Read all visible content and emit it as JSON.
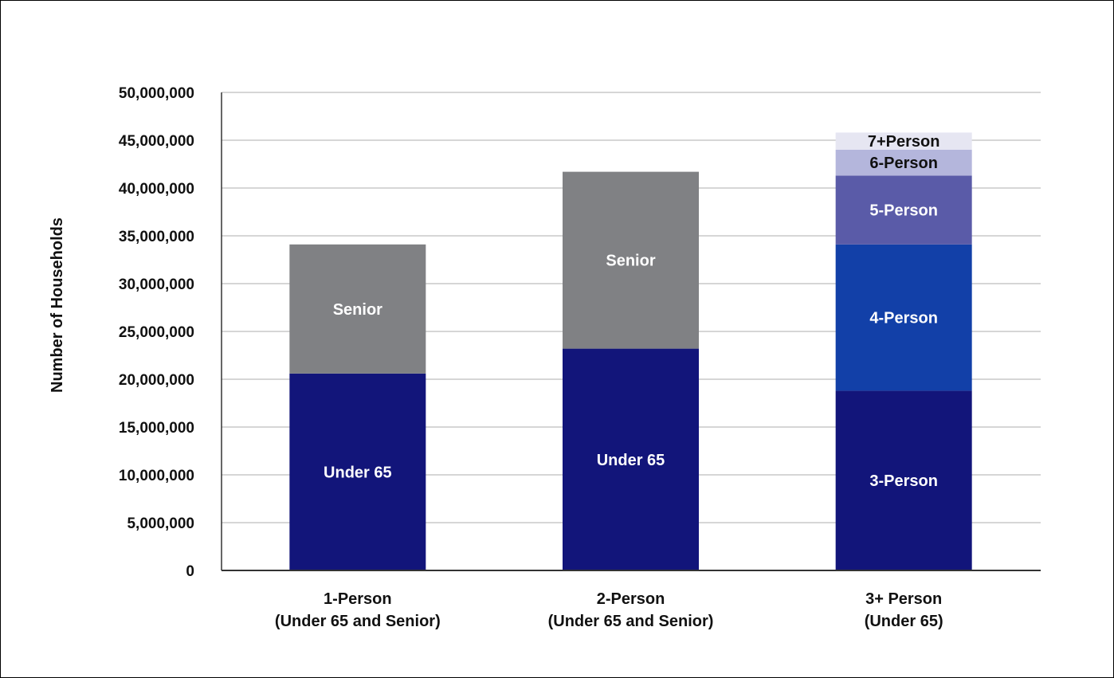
{
  "chart_data": {
    "type": "bar",
    "stacked": true,
    "title": "",
    "ylabel": "Number of Households",
    "xlabel": "",
    "ylim": [
      0,
      50000000
    ],
    "yticks": [
      0,
      5000000,
      10000000,
      15000000,
      20000000,
      25000000,
      30000000,
      35000000,
      40000000,
      45000000,
      50000000
    ],
    "ytick_labels": [
      "0",
      "5,000,000",
      "10,000,000",
      "15,000,000",
      "20,000,000",
      "25,000,000",
      "30,000,000",
      "35,000,000",
      "40,000,000",
      "45,000,000",
      "50,000,000"
    ],
    "grid": true,
    "legend": "none",
    "categories": [
      {
        "line1": "1-Person",
        "line2": "(Under 65 and Senior)"
      },
      {
        "line1": "2-Person",
        "line2": "(Under 65 and Senior)"
      },
      {
        "line1": "3+ Person",
        "line2": "(Under 65)"
      }
    ],
    "bars": [
      {
        "segments": [
          {
            "label": "Under 65",
            "value": 20600000,
            "color": "#12157a",
            "text_color": "#ffffff"
          },
          {
            "label": "Senior",
            "value": 13500000,
            "color": "#808184",
            "text_color": "#ffffff"
          }
        ]
      },
      {
        "segments": [
          {
            "label": "Under 65",
            "value": 23200000,
            "color": "#12157a",
            "text_color": "#ffffff"
          },
          {
            "label": "Senior",
            "value": 18500000,
            "color": "#808184",
            "text_color": "#ffffff"
          }
        ]
      },
      {
        "segments": [
          {
            "label": "3-Person",
            "value": 18800000,
            "color": "#12157a",
            "text_color": "#ffffff"
          },
          {
            "label": "4-Person",
            "value": 15300000,
            "color": "#1240a8",
            "text_color": "#ffffff"
          },
          {
            "label": "5-Person",
            "value": 7200000,
            "color": "#5a5ba8",
            "text_color": "#ffffff"
          },
          {
            "label": "6-Person",
            "value": 2700000,
            "color": "#b4b6dc",
            "text_color": "#111111"
          },
          {
            "label": "7+Person",
            "value": 1800000,
            "color": "#e6e6f2",
            "text_color": "#111111"
          }
        ]
      }
    ],
    "colors": {
      "grid": "#c8c8c8",
      "axis": "#333333"
    }
  }
}
